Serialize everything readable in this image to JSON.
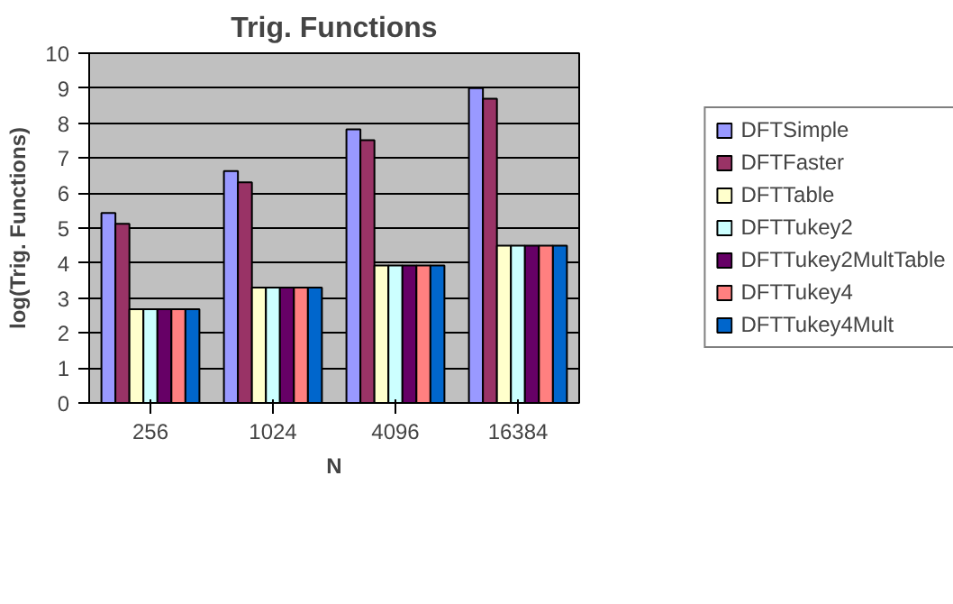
{
  "chart_data": {
    "type": "bar",
    "title": "Trig. Functions",
    "xlabel": "N",
    "ylabel": "log(Trig. Functions)",
    "categories": [
      "256",
      "1024",
      "4096",
      "16384"
    ],
    "series": [
      {
        "name": "DFTSimple",
        "color": "#9999ff",
        "values": [
          5.43,
          6.63,
          7.82,
          9.0
        ]
      },
      {
        "name": "DFTFaster",
        "color": "#993366",
        "values": [
          5.12,
          6.31,
          7.51,
          8.7
        ]
      },
      {
        "name": "DFTTable",
        "color": "#ffffcc",
        "values": [
          2.68,
          3.3,
          3.93,
          4.5
        ]
      },
      {
        "name": "DFTTukey2",
        "color": "#ccffff",
        "values": [
          2.68,
          3.3,
          3.93,
          4.5
        ]
      },
      {
        "name": "DFTTukey2MultTable",
        "color": "#660066",
        "values": [
          2.68,
          3.3,
          3.93,
          4.5
        ]
      },
      {
        "name": "DFTTukey4",
        "color": "#ff8080",
        "values": [
          2.68,
          3.3,
          3.93,
          4.5
        ]
      },
      {
        "name": "DFTTukey4Mult",
        "color": "#0066cc",
        "values": [
          2.68,
          3.3,
          3.93,
          4.5
        ]
      }
    ],
    "ylim": [
      0,
      10
    ],
    "yticks": [
      0,
      1,
      2,
      3,
      4,
      5,
      6,
      7,
      8,
      9,
      10
    ],
    "grid": "y",
    "legend": "right"
  }
}
